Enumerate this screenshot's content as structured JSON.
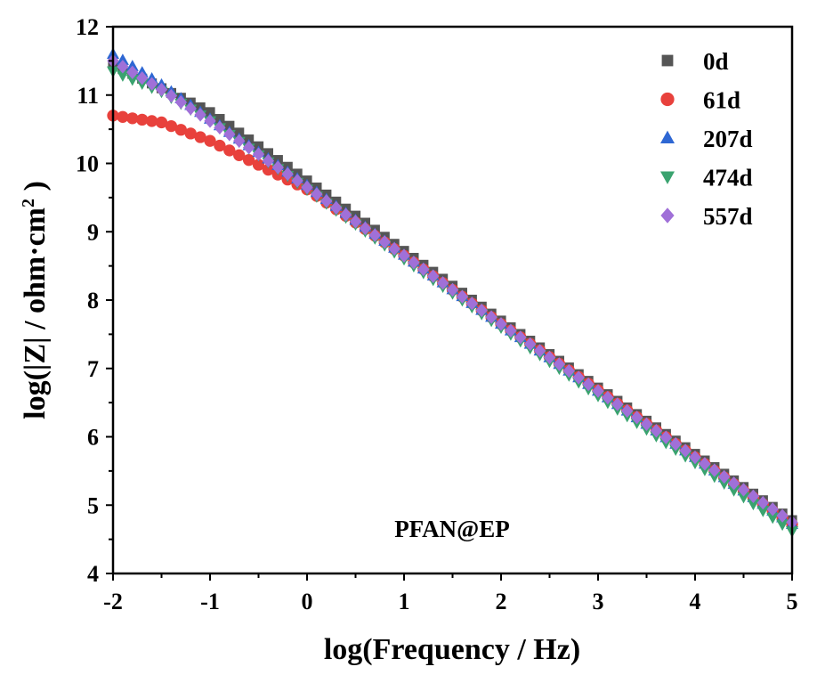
{
  "chart_data": {
    "type": "scatter",
    "title": "",
    "xlabel": "log(Frequency / Hz)",
    "ylabel_main": "log(|Z| / ohm·cm",
    "ylabel_sup": "2",
    "ylabel_close": " )",
    "xlim": [
      -2,
      5
    ],
    "ylim": [
      4,
      12
    ],
    "xticks": [
      "-2",
      "-1",
      "0",
      "1",
      "2",
      "3",
      "4",
      "5"
    ],
    "yticks": [
      "4",
      "5",
      "6",
      "7",
      "8",
      "9",
      "10",
      "11",
      "12"
    ],
    "grid": false,
    "legend_position": "top-right",
    "annotation": "PFAN@EP",
    "points_per_series": 71,
    "series": [
      {
        "name": "0d",
        "marker": "square",
        "color": "#555555",
        "anchors": [
          [
            -2,
            11.45
          ],
          [
            -1,
            10.75
          ],
          [
            0,
            9.75
          ],
          [
            1,
            8.72
          ],
          [
            2,
            7.7
          ],
          [
            3,
            6.72
          ],
          [
            4,
            5.75
          ],
          [
            5,
            4.78
          ]
        ]
      },
      {
        "name": "61d",
        "marker": "circle",
        "color": "#e8413c",
        "anchors": [
          [
            -2,
            10.7
          ],
          [
            -1.5,
            10.6
          ],
          [
            -1,
            10.33
          ],
          [
            -0.5,
            9.98
          ],
          [
            0,
            9.62
          ],
          [
            1,
            8.65
          ],
          [
            2,
            7.65
          ],
          [
            3,
            6.68
          ],
          [
            4,
            5.7
          ],
          [
            5,
            4.72
          ]
        ]
      },
      {
        "name": "207d",
        "marker": "triangle-up",
        "color": "#2e67d3",
        "anchors": [
          [
            -2,
            11.6
          ],
          [
            -1.5,
            11.15
          ],
          [
            -1,
            10.65
          ],
          [
            0,
            9.68
          ],
          [
            1,
            8.66
          ],
          [
            2,
            7.65
          ],
          [
            3,
            6.67
          ],
          [
            4,
            5.7
          ],
          [
            5,
            4.72
          ]
        ]
      },
      {
        "name": "474d",
        "marker": "triangle-down",
        "color": "#3aa36f",
        "anchors": [
          [
            -2,
            11.35
          ],
          [
            -1.5,
            11.05
          ],
          [
            -1,
            10.62
          ],
          [
            0,
            9.62
          ],
          [
            1,
            8.6
          ],
          [
            2,
            7.6
          ],
          [
            3,
            6.6
          ],
          [
            4,
            5.62
          ],
          [
            5,
            4.62
          ]
        ]
      },
      {
        "name": "557d",
        "marker": "diamond",
        "color": "#a070d8",
        "anchors": [
          [
            -2,
            11.5
          ],
          [
            -1.5,
            11.08
          ],
          [
            -1,
            10.62
          ],
          [
            0,
            9.65
          ],
          [
            1,
            8.65
          ],
          [
            2,
            7.65
          ],
          [
            3,
            6.67
          ],
          [
            4,
            5.7
          ],
          [
            5,
            4.75
          ]
        ]
      }
    ]
  }
}
